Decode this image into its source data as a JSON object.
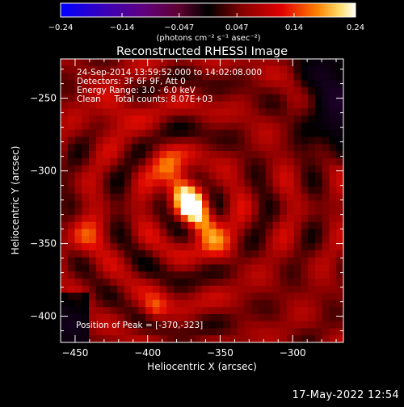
{
  "chart_data": {
    "type": "heatmap",
    "title": "Reconstructed RHESSI Image",
    "xlabel": "Heliocentric X (arcsec)",
    "ylabel": "Heliocentric Y (arcsec)",
    "xlim": [
      -460,
      -265
    ],
    "ylim": [
      -418,
      -223
    ],
    "x_ticks": [
      -450,
      -400,
      -350,
      -300
    ],
    "y_ticks": [
      -250,
      -300,
      -350,
      -400
    ],
    "colorbar": {
      "ticks": [
        "-0.24",
        "-0.14",
        "-0.047",
        "0.047",
        "0.14",
        "0.24"
      ],
      "range": [
        -0.24,
        0.24
      ],
      "units": "(photons cm⁻² s⁻¹ asec⁻²)"
    },
    "peak_xy": [
      -370,
      -323
    ]
  },
  "info": {
    "time_range": "24-Sep-2014 13:59:52.000 to 14:02:08.000",
    "detectors": "Detectors: 3F 6F 9F, Att 0",
    "energy": "Energy Range: 3.0 - 6.0 keV",
    "clean_counts": "Clean     Total counts: 8.07E+03"
  },
  "peak_label": "Position of Peak = [-370,-323]",
  "timestamp": "17-May-2022 12:54"
}
